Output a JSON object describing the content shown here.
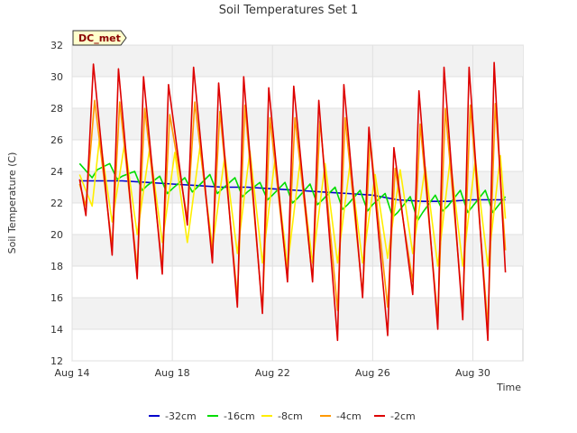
{
  "chart_data": {
    "type": "line",
    "title": "Soil Temperatures Set 1",
    "xlabel": "Time",
    "ylabel": "Soil Temperature (C)",
    "badge": "DC_met",
    "ylim": [
      12,
      32
    ],
    "yticks": [
      12,
      14,
      16,
      18,
      20,
      22,
      24,
      26,
      28,
      30,
      32
    ],
    "xlim": [
      0,
      18.0
    ],
    "x_unit": "days since Aug 14",
    "xticks": [
      {
        "label": "Aug 14",
        "day": 0
      },
      {
        "label": "Aug 18",
        "day": 4
      },
      {
        "label": "Aug 22",
        "day": 8
      },
      {
        "label": "Aug 26",
        "day": 12
      },
      {
        "label": "Aug 30",
        "day": 16
      }
    ],
    "grid": true,
    "legend_position": "bottom-center",
    "series": [
      {
        "name": "-32cm",
        "color": "#0000cc",
        "x": [
          0.3,
          1,
          2,
          3,
          4,
          5,
          6,
          7,
          8,
          9,
          10,
          11,
          12,
          13,
          14,
          15,
          16,
          17,
          17.3
        ],
        "y": [
          23.4,
          23.4,
          23.4,
          23.3,
          23.2,
          23.1,
          23.0,
          23.0,
          22.9,
          22.8,
          22.7,
          22.6,
          22.5,
          22.2,
          22.1,
          22.1,
          22.2,
          22.2,
          22.2
        ]
      },
      {
        "name": "-16cm",
        "color": "#00dd00",
        "x": [
          0.3,
          0.8,
          1.0,
          1.5,
          1.8,
          2.0,
          2.5,
          2.8,
          3.0,
          3.5,
          3.8,
          4.0,
          4.5,
          4.8,
          5.0,
          5.5,
          5.8,
          6.0,
          6.5,
          6.8,
          7.0,
          7.5,
          7.8,
          8.0,
          8.5,
          8.8,
          9.0,
          9.5,
          9.8,
          10.0,
          10.5,
          10.8,
          11.0,
          11.5,
          11.8,
          12.0,
          12.5,
          12.8,
          13.0,
          13.5,
          13.8,
          14.0,
          14.5,
          14.8,
          15.0,
          15.5,
          15.8,
          16.0,
          16.5,
          16.8,
          17.0,
          17.3
        ],
        "y": [
          24.5,
          23.6,
          24.1,
          24.5,
          23.5,
          23.7,
          24.0,
          22.8,
          23.1,
          23.7,
          22.6,
          22.9,
          23.6,
          22.7,
          23.0,
          23.8,
          22.6,
          22.9,
          23.6,
          22.4,
          22.7,
          23.3,
          22.2,
          22.5,
          23.3,
          22.0,
          22.3,
          23.2,
          21.9,
          22.2,
          23.0,
          21.6,
          21.9,
          22.8,
          21.5,
          21.9,
          22.6,
          21.1,
          21.4,
          22.4,
          20.9,
          21.4,
          22.5,
          21.5,
          21.8,
          22.8,
          21.4,
          21.8,
          22.8,
          21.4,
          21.8,
          22.4
        ]
      },
      {
        "name": "-8cm",
        "color": "#ffee00",
        "x": [
          0.3,
          0.8,
          1.1,
          1.6,
          2.1,
          2.6,
          3.1,
          3.6,
          4.1,
          4.6,
          5.1,
          5.6,
          6.1,
          6.6,
          7.1,
          7.6,
          8.1,
          8.6,
          9.1,
          9.6,
          10.1,
          10.6,
          11.1,
          11.6,
          12.1,
          12.6,
          13.1,
          13.6,
          14.1,
          14.6,
          15.1,
          15.6,
          16.1,
          16.6,
          17.1,
          17.3
        ],
        "y": [
          23.8,
          21.8,
          26.2,
          20.8,
          25.8,
          20.0,
          25.5,
          19.5,
          25.2,
          19.5,
          25.5,
          19.2,
          25.0,
          18.8,
          25.3,
          18.2,
          24.8,
          18.0,
          24.6,
          18.2,
          24.5,
          18.2,
          24.5,
          18.2,
          23.8,
          18.5,
          24.1,
          18.8,
          24.3,
          18.0,
          24.8,
          18.0,
          24.8,
          18.0,
          25.0,
          21.0
        ]
      },
      {
        "name": "-4cm",
        "color": "#ff9900",
        "x": [
          0.3,
          0.55,
          0.9,
          1.6,
          1.9,
          2.6,
          2.9,
          3.6,
          3.9,
          4.6,
          4.9,
          5.6,
          5.9,
          6.6,
          6.9,
          7.6,
          7.9,
          8.6,
          8.9,
          9.6,
          9.9,
          10.6,
          10.9,
          11.6,
          11.9,
          12.6,
          12.9,
          13.6,
          13.9,
          14.6,
          14.9,
          15.6,
          15.9,
          16.6,
          16.9,
          17.3
        ],
        "y": [
          23.2,
          21.8,
          28.5,
          19.2,
          28.4,
          17.8,
          28.0,
          18.0,
          27.6,
          21.0,
          28.4,
          18.8,
          27.8,
          16.0,
          28.2,
          15.2,
          27.4,
          17.2,
          27.4,
          17.2,
          27.2,
          15.2,
          27.4,
          16.2,
          26.0,
          15.4,
          24.2,
          17.0,
          27.0,
          14.6,
          28.0,
          15.2,
          28.2,
          14.2,
          28.3,
          19.0
        ]
      },
      {
        "name": "-2cm",
        "color": "#dd0000",
        "x": [
          0.3,
          0.55,
          0.85,
          1.6,
          1.85,
          2.6,
          2.85,
          3.6,
          3.85,
          4.6,
          4.85,
          5.6,
          5.85,
          6.6,
          6.85,
          7.6,
          7.85,
          8.6,
          8.85,
          9.6,
          9.85,
          10.6,
          10.85,
          11.6,
          11.85,
          12.6,
          12.85,
          13.6,
          13.85,
          14.6,
          14.85,
          15.6,
          15.85,
          16.6,
          16.85,
          17.3
        ],
        "y": [
          23.5,
          21.2,
          30.8,
          18.7,
          30.5,
          17.2,
          30.0,
          17.5,
          29.5,
          20.6,
          30.6,
          18.2,
          29.6,
          15.4,
          30.0,
          15.0,
          29.3,
          17.0,
          29.4,
          17.0,
          28.5,
          13.3,
          29.5,
          16.0,
          26.8,
          13.6,
          25.5,
          16.2,
          29.1,
          14.0,
          30.6,
          14.6,
          30.6,
          13.3,
          30.9,
          17.6
        ]
      }
    ]
  }
}
